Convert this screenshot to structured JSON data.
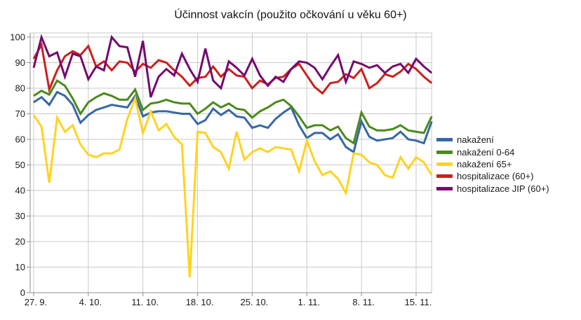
{
  "title": "Účinnost vakcín (použito očkování u věku 60+)",
  "chart_data": {
    "type": "line",
    "title": "Účinnost vakcín (použito očkování u věku 60+)",
    "xlabel": "",
    "ylabel": "",
    "ylim": [
      0,
      100
    ],
    "grid": "horizontal every 10 + vertical weekly",
    "legend_position": "right",
    "n_points": 52,
    "x_start_label": "27. 9.",
    "x_tick_labels": [
      "27. 9.",
      "4. 10.",
      "11. 10.",
      "18. 10.",
      "25. 10.",
      "1. 11.",
      "8. 11.",
      "15. 11."
    ],
    "x_tick_indices": [
      0,
      7,
      14,
      21,
      28,
      35,
      42,
      49
    ],
    "y_tick_labels": [
      "100",
      "90",
      "80",
      "70",
      "60",
      "50",
      "40",
      "30",
      "20",
      "10",
      "0"
    ],
    "axis_color": "#8f8f8f",
    "grid_color": "#c9c9c9",
    "text_color": "#1a1a1a",
    "series": [
      {
        "name": "nakažení",
        "color": "#3767A5",
        "values": [
          74.5,
          76.5,
          73.5,
          78.5,
          77,
          73.5,
          66.5,
          69.5,
          71.5,
          72.5,
          73.5,
          73,
          72.5,
          77,
          69,
          70.5,
          71,
          71,
          70.5,
          70,
          70,
          66,
          67.5,
          72,
          69.5,
          71.5,
          69,
          68.5,
          64.5,
          65.5,
          64.5,
          68,
          70.5,
          72.5,
          65.5,
          60.5,
          62.5,
          62.5,
          60,
          62,
          57,
          55,
          67,
          61,
          59.5,
          60,
          60.5,
          63,
          60,
          59.5,
          58.5,
          67
        ]
      },
      {
        "name": "nakažení 0-64",
        "color": "#4B8A1B",
        "values": [
          77,
          79,
          77.5,
          83,
          81,
          76,
          70,
          74.5,
          76.5,
          78,
          77,
          75.5,
          75.5,
          79.5,
          71.5,
          74,
          74.5,
          75.5,
          74.5,
          74,
          74,
          70,
          72,
          74.5,
          72.5,
          74,
          72,
          71.5,
          68.5,
          71,
          72.5,
          74.5,
          75.5,
          73,
          69,
          64.5,
          65.5,
          65.5,
          63.5,
          65,
          60.5,
          58.5,
          70.5,
          65,
          63.5,
          63.5,
          64,
          65.5,
          63.5,
          63,
          62.5,
          69
        ]
      },
      {
        "name": "nakažení 65+",
        "color": "#FFD320",
        "values": [
          69.5,
          65,
          43,
          68.5,
          63,
          65.5,
          58,
          54,
          53,
          54.5,
          54.5,
          56,
          68,
          76,
          62.5,
          71,
          63.5,
          66,
          61,
          58,
          6,
          63,
          62.5,
          57,
          55,
          48.5,
          63,
          52,
          55,
          56.5,
          55,
          57,
          56.5,
          56,
          47.5,
          59.5,
          51.5,
          46,
          47.5,
          44.5,
          39,
          54.5,
          54,
          51,
          50,
          46,
          45,
          53,
          48.5,
          53,
          51,
          46
        ]
      },
      {
        "name": "hospitalizace (60+)",
        "color": "#C9211E",
        "values": [
          91.5,
          97,
          79.5,
          87,
          92.5,
          94.5,
          93,
          96.5,
          88.5,
          90.5,
          87,
          90.5,
          90,
          86.5,
          89.5,
          88,
          91,
          90,
          87,
          84.5,
          81,
          84,
          84.5,
          88.5,
          84.5,
          87.5,
          85,
          84.5,
          80,
          83,
          81.5,
          84,
          84.5,
          87.5,
          89.5,
          85,
          80.5,
          78,
          82,
          82.5,
          85.5,
          84,
          87.5,
          80,
          82,
          85.5,
          84.5,
          86.5,
          89.5,
          87.5,
          84.5,
          82
        ]
      },
      {
        "name": "hospitalizace JIP (60+)",
        "color": "#740B6E",
        "values": [
          88,
          100,
          92.5,
          94,
          84.5,
          93.5,
          92.5,
          83.5,
          88.5,
          87,
          100,
          96.5,
          96,
          84.5,
          98.5,
          76.5,
          84.5,
          87.5,
          85,
          93.5,
          87.5,
          82.5,
          95.5,
          83,
          80,
          90.5,
          88,
          85,
          91.5,
          85,
          81,
          84.5,
          82.5,
          87.5,
          90.5,
          90,
          88,
          83.5,
          88.5,
          93,
          82.5,
          90.5,
          89.5,
          88,
          89,
          86,
          88.5,
          89.5,
          86,
          91.5,
          88.5,
          86
        ]
      }
    ]
  }
}
